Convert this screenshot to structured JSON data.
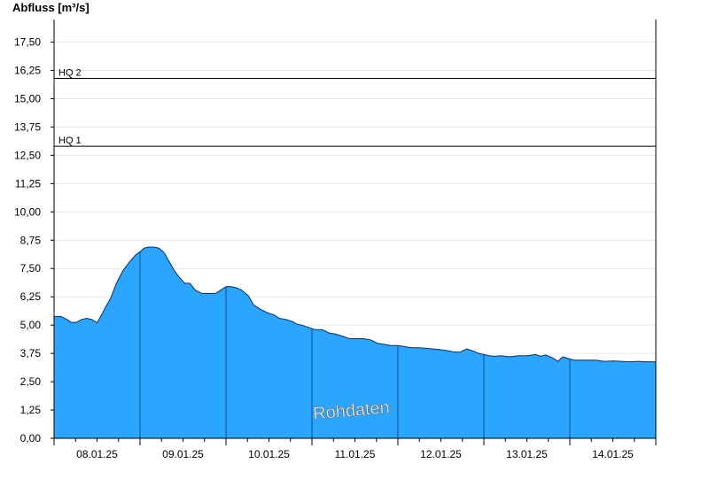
{
  "chart_data": {
    "type": "area",
    "ylabel": "Abfluss [m³/s]",
    "ylim": [
      0,
      18.5
    ],
    "yticks": [
      "0,00",
      "1,25",
      "2,50",
      "3,75",
      "5,00",
      "6,25",
      "7,50",
      "8,75",
      "10,00",
      "11,25",
      "12,50",
      "13,75",
      "15,00",
      "16,25",
      "17,50"
    ],
    "xlim": [
      0,
      7.0
    ],
    "xticks": [
      {
        "x": 0.5,
        "label": "08.01.25"
      },
      {
        "x": 1.5,
        "label": "09.01.25"
      },
      {
        "x": 2.5,
        "label": "10.01.25"
      },
      {
        "x": 3.5,
        "label": "11.01.25"
      },
      {
        "x": 4.5,
        "label": "12.01.25"
      },
      {
        "x": 5.5,
        "label": "13.01.25"
      },
      {
        "x": 6.5,
        "label": "14.01.25"
      }
    ],
    "reference_lines": [
      {
        "name": "HQ 1",
        "value": 12.9
      },
      {
        "name": "HQ 2",
        "value": 15.9
      }
    ],
    "watermark": "Rohdaten",
    "fill_color": "#2aa6ff",
    "series": [
      {
        "x": [
          0.0,
          0.08,
          0.15,
          0.2,
          0.26,
          0.32,
          0.38,
          0.44,
          0.5,
          0.56,
          0.6,
          0.66,
          0.72,
          0.8,
          0.88,
          0.95,
          1.0,
          1.05,
          1.1,
          1.16,
          1.22,
          1.28,
          1.34,
          1.4,
          1.46,
          1.52,
          1.58,
          1.64,
          1.72,
          1.78,
          1.84,
          1.88,
          1.92,
          1.96,
          2.0,
          2.06,
          2.12,
          2.18,
          2.26,
          2.32,
          2.4,
          2.48,
          2.56,
          2.62,
          2.7,
          2.78,
          2.82,
          2.88,
          2.96,
          3.04,
          3.12,
          3.2,
          3.28,
          3.36,
          3.44,
          3.52,
          3.6,
          3.68,
          3.76,
          3.84,
          3.92,
          4.0,
          4.08,
          4.16,
          4.24,
          4.32,
          4.4,
          4.48,
          4.56,
          4.64,
          4.72,
          4.8,
          4.88,
          4.94,
          5.0,
          5.06,
          5.12,
          5.2,
          5.3,
          5.4,
          5.5,
          5.6,
          5.66,
          5.72,
          5.8,
          5.86,
          5.92,
          6.0,
          6.06,
          6.12,
          6.2,
          6.3,
          6.4,
          6.5,
          6.6,
          6.7,
          6.8,
          6.9,
          7.0
        ],
        "y": [
          5.38,
          5.38,
          5.25,
          5.12,
          5.12,
          5.25,
          5.3,
          5.25,
          5.1,
          5.5,
          5.8,
          6.2,
          6.8,
          7.4,
          7.8,
          8.1,
          8.25,
          8.4,
          8.45,
          8.45,
          8.4,
          8.2,
          7.8,
          7.4,
          7.1,
          6.85,
          6.85,
          6.55,
          6.4,
          6.4,
          6.4,
          6.4,
          6.5,
          6.6,
          6.7,
          6.7,
          6.65,
          6.55,
          6.3,
          5.9,
          5.7,
          5.55,
          5.45,
          5.3,
          5.25,
          5.15,
          5.05,
          5.0,
          4.9,
          4.8,
          4.8,
          4.65,
          4.6,
          4.5,
          4.4,
          4.4,
          4.4,
          4.35,
          4.2,
          4.15,
          4.1,
          4.1,
          4.05,
          4.0,
          4.0,
          3.98,
          3.95,
          3.92,
          3.88,
          3.82,
          3.8,
          3.95,
          3.85,
          3.75,
          3.7,
          3.65,
          3.62,
          3.65,
          3.6,
          3.65,
          3.65,
          3.7,
          3.62,
          3.68,
          3.55,
          3.4,
          3.6,
          3.5,
          3.45,
          3.45,
          3.45,
          3.45,
          3.4,
          3.42,
          3.4,
          3.38,
          3.4,
          3.38,
          3.38
        ]
      }
    ]
  }
}
